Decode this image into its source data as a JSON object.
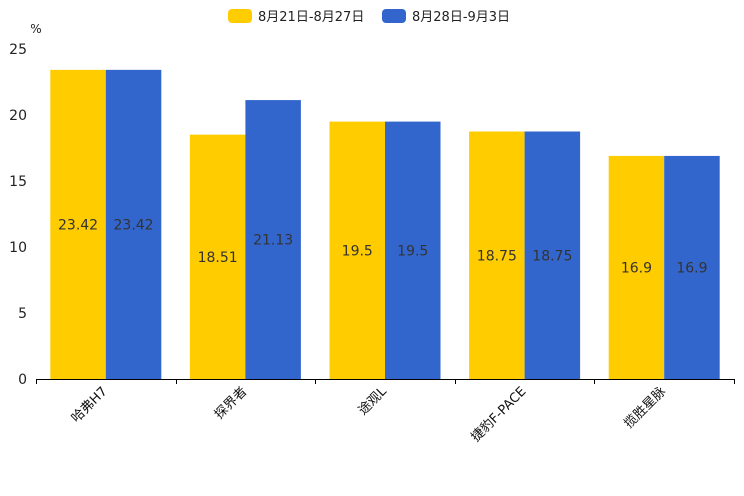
{
  "chart_data": {
    "type": "bar",
    "unit_label": "%",
    "categories": [
      "哈弗H7",
      "探界者",
      "途观L",
      "捷豹F-PACE",
      "揽胜星脉"
    ],
    "series": [
      {
        "name": "8月21日-8月27日",
        "color": "#FFCC00",
        "values": [
          23.42,
          18.51,
          19.5,
          18.75,
          16.9
        ],
        "labels": [
          "23.42",
          "18.51",
          "19.5",
          "18.75",
          "16.9"
        ]
      },
      {
        "name": "8月28日-9月3日",
        "color": "#3366CC",
        "values": [
          23.42,
          21.13,
          19.5,
          18.75,
          16.9
        ],
        "labels": [
          "23.42",
          "21.13",
          "19.5",
          "18.75",
          "16.9"
        ]
      }
    ],
    "ylim": [
      0,
      25
    ],
    "yticks": [
      "0",
      "5",
      "10",
      "15",
      "20",
      "25"
    ],
    "legend": "top-center",
    "grid": false
  }
}
